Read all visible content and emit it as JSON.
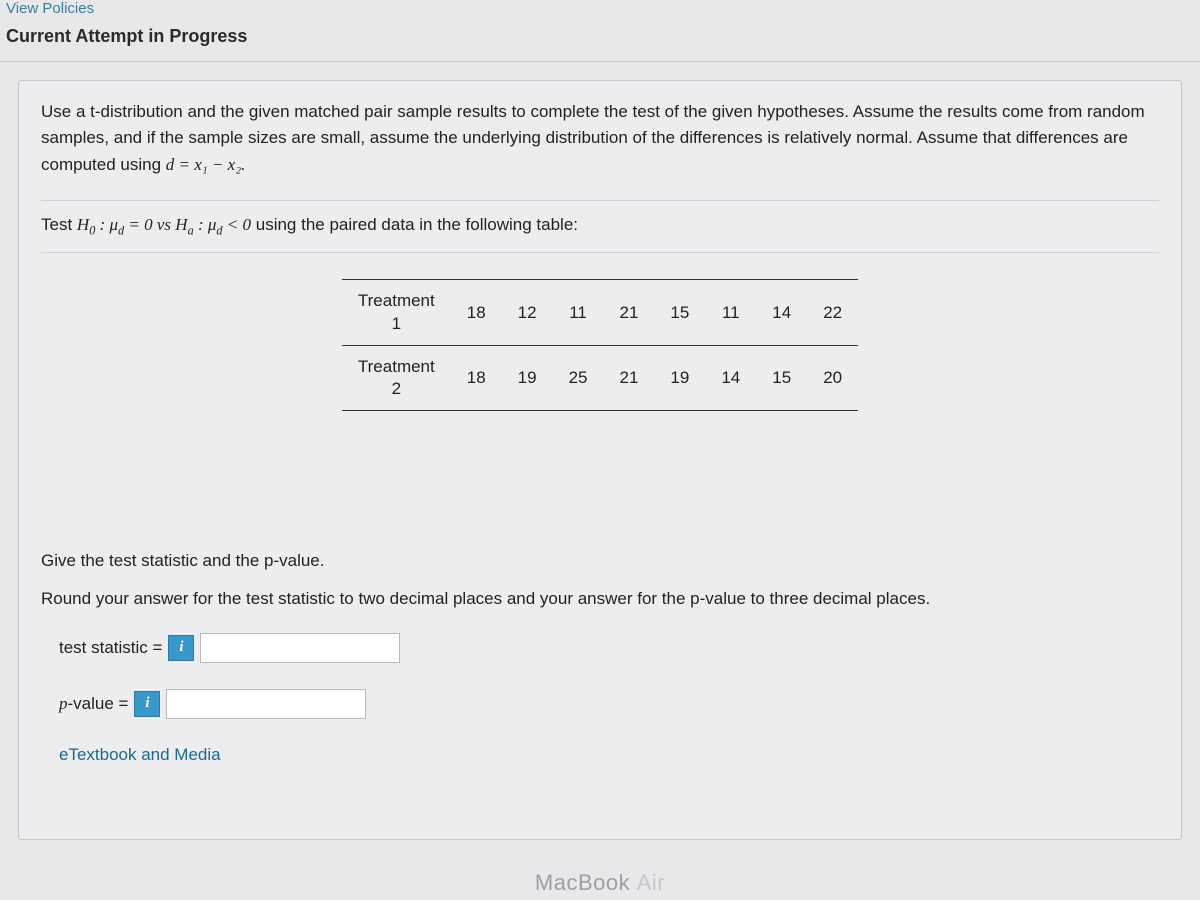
{
  "header": {
    "policies_link": "View Policies",
    "section_title": "Current Attempt in Progress"
  },
  "question": {
    "instructions": "Use a t-distribution and the given matched pair sample results to complete the test of the given hypotheses. Assume the results come from random samples, and if the sample sizes are small, assume the underlying distribution of the differences is relatively normal. Assume that differences are computed using ",
    "diff_formula": "d = x₁ − x₂.",
    "hypotheses_prefix": "Test ",
    "hypotheses_suffix": " using the paired data in the following table:"
  },
  "table": {
    "row1_label_a": "Treatment",
    "row1_label_b": "1",
    "row1": [
      "18",
      "12",
      "11",
      "21",
      "15",
      "11",
      "14",
      "22"
    ],
    "row2_label_a": "Treatment",
    "row2_label_b": "2",
    "row2": [
      "18",
      "19",
      "25",
      "21",
      "19",
      "14",
      "15",
      "20"
    ]
  },
  "prompts": {
    "give": "Give the test statistic and the p-value.",
    "round": "Round your answer for the test statistic to two decimal places and your answer for the p-value to three decimal places.",
    "test_stat_label": "test statistic =",
    "pvalue_label": "p-value =",
    "etext": "eTextbook and Media"
  },
  "inputs": {
    "test_stat_value": "",
    "pvalue_value": ""
  },
  "device": {
    "brand": "MacBook",
    "model": "Air"
  },
  "colors": {
    "link": "#1a6b8f",
    "badge_bg": "#3a97c9",
    "card_bg": "#ededef",
    "page_bg": "#e8e8ea"
  }
}
